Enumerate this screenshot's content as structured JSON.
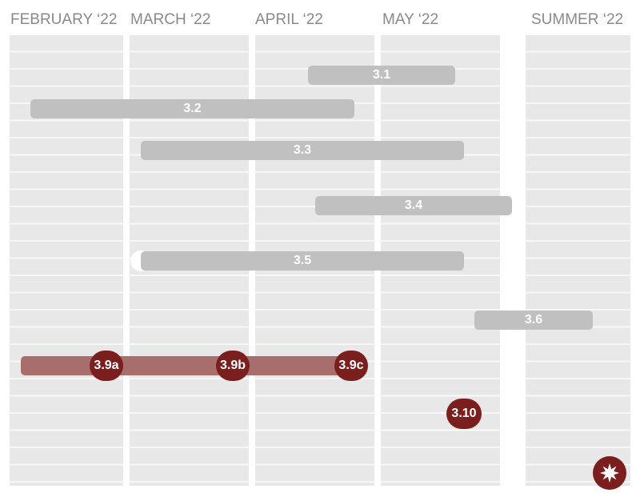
{
  "columns": [
    {
      "label": "FEBRUARY ‘22"
    },
    {
      "label": "MARCH ‘22"
    },
    {
      "label": "APRIL ‘22"
    },
    {
      "label": "MAY ‘22"
    },
    {
      "label": "SUMMER ‘22"
    }
  ],
  "tasks": [
    {
      "label": "3.1",
      "start": "April ‘22",
      "end": "May ‘22"
    },
    {
      "label": "3.2",
      "start": "February ‘22",
      "end": "April ‘22"
    },
    {
      "label": "3.3",
      "start": "March ‘22",
      "end": "May ‘22"
    },
    {
      "label": "3.4",
      "start": "April ‘22",
      "end": "May ‘22"
    },
    {
      "label": "3.5",
      "start": "March ‘22",
      "end": "May ‘22"
    },
    {
      "label": "3.6",
      "start": "May ‘22",
      "end": "Summer ‘22"
    }
  ],
  "milestone_track": {
    "color": "#a86e6e",
    "milestones": [
      {
        "label": "3.9a"
      },
      {
        "label": "3.9b"
      },
      {
        "label": "3.9c"
      }
    ]
  },
  "standalone_milestones": [
    {
      "label": "3.10"
    }
  ],
  "final_marker": {
    "icon": "starburst-icon"
  },
  "colors": {
    "task_bar": "#c0c0c0",
    "milestone": "#7a1e1e",
    "column_bg": "#e8e8e8",
    "header_text": "#8a8a8a"
  }
}
